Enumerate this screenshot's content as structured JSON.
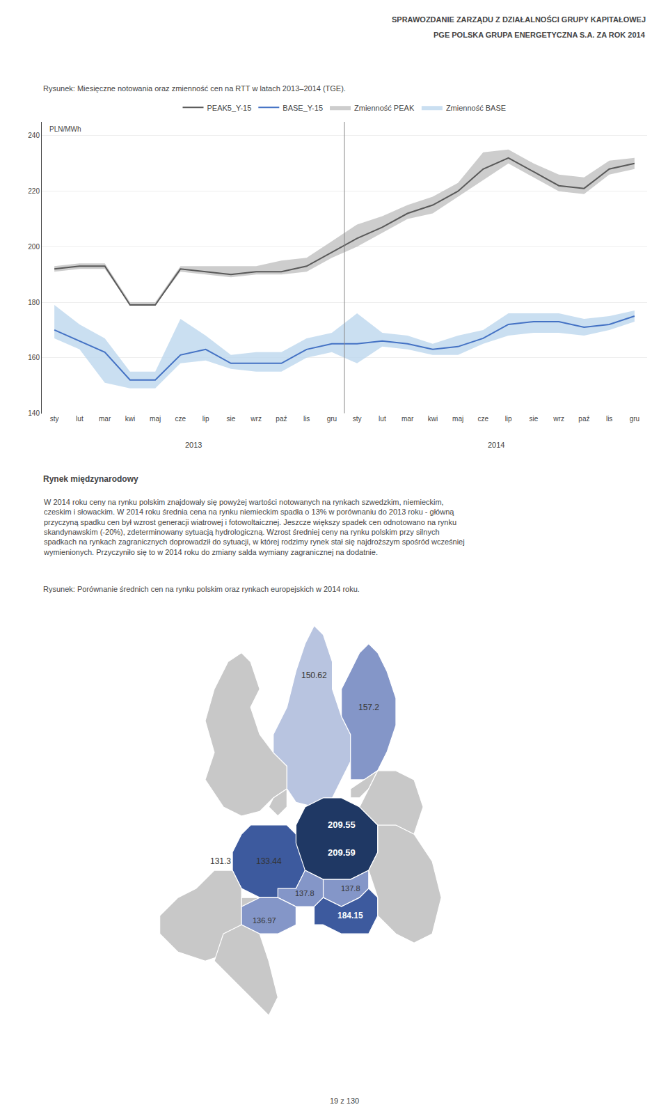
{
  "chart_data": [
    {
      "type": "line",
      "title": "Rysunek: Miesięczne notowania oraz zmienność cen na RTT w latach 2013–2014 (TGE).",
      "subtitle": "SPRAWOZDANIE ZARZĄDU Z DZIAŁALNOŚCI GRUPY KAPITAŁOWEJ\nPGE POLSKA GRUPA ENERGETYCZNA S.A. ZA ROK 2014",
      "y_label": "PLN/MWh",
      "annotations": [
        "2013",
        "2014"
      ],
      "categories": [
        "sty",
        "lut",
        "mar",
        "kwi",
        "maj",
        "cze",
        "lip",
        "sie",
        "wrz",
        "paź",
        "lis",
        "gru",
        "sty",
        "lut",
        "mar",
        "kwi",
        "maj",
        "cze",
        "lip",
        "sie",
        "wrz",
        "paź",
        "lis",
        "gru"
      ],
      "series": [
        {
          "name": "Zmienność BASE",
          "type": "band",
          "color": "#bdd7ee",
          "upper": [
            179,
            172,
            167,
            155,
            155,
            174,
            168,
            161,
            162,
            162,
            167,
            169,
            176,
            169,
            168,
            165,
            168,
            170,
            176,
            176,
            176,
            174,
            175,
            177
          ],
          "lower": [
            167,
            163,
            151,
            149,
            149,
            158,
            159,
            156,
            155,
            155,
            160,
            162,
            158,
            164,
            163,
            161,
            161,
            165,
            168,
            169,
            169,
            168,
            170,
            173
          ]
        },
        {
          "name": "Zmienność PEAK",
          "type": "band",
          "color": "#c0c0c0",
          "upper": [
            193,
            194,
            194,
            180,
            180,
            193,
            193,
            193,
            193,
            195,
            196,
            202,
            208,
            211,
            215,
            218,
            223,
            234,
            235,
            230,
            226,
            225,
            231,
            232
          ],
          "lower": [
            191,
            192,
            192,
            179,
            179,
            191,
            190,
            189,
            190,
            190,
            191,
            196,
            200,
            205,
            210,
            212,
            218,
            224,
            230,
            225,
            220,
            219,
            226,
            228
          ]
        },
        {
          "name": "BASE_Y-15",
          "type": "line",
          "color": "#4472c4",
          "values": [
            170,
            166,
            162,
            152,
            152,
            161,
            163,
            158,
            158,
            158,
            163,
            165,
            165,
            166,
            165,
            163,
            164,
            167,
            172,
            173,
            173,
            171,
            172,
            175
          ]
        },
        {
          "name": "PEAK5_Y-15",
          "type": "line",
          "color": "#595959",
          "values": [
            192,
            193,
            193,
            179,
            179,
            192,
            191,
            190,
            191,
            191,
            193,
            198,
            203,
            207,
            212,
            215,
            220,
            228,
            232,
            227,
            222,
            221,
            228,
            230
          ]
        }
      ],
      "ylim": [
        140,
        245
      ],
      "yticks": [
        140,
        160,
        180,
        200,
        220,
        240
      ],
      "grid": true,
      "legend": "top"
    },
    {
      "type": "map",
      "title": "Rysunek: Porównanie średnich cen na rynku polskim oraz rynkach europejskich w 2014 roku.",
      "annotations": [
        "Rynek międzynarodowy",
        "W 2014 roku ceny na rynku polskim znajdowały się powyżej wartości notowanych na rynkach szwedzkim, niemieckim,\nczeskim i słowackim. W 2014 roku średnia cena na rynku niemieckim spadła o 13% w porównaniu do 2013 roku - główną\nprzyczyną spadku cen był wzrost generacji wiatrowej i fotowoltaicznej. Jeszcze większy spadek cen odnotowano na rynku\nskandynawskim (-20%), zdeterminowany sytuacją hydrologiczną. Wzrost średniej ceny na rynku polskim przy silnych\nspadkach na rynkach zagranicznych doprowadził do sytuacji, w której rodzimy rynek stał się najdroższym spośród wcześniej\nwymienionych. Przyczyniło się to w 2014 roku do zmiany salda wymiany zagranicznej na dodatnie.",
        "19 z 130"
      ],
      "values": [
        150.62,
        157.2,
        133.44,
        131.3,
        137.8,
        136.97,
        209.55,
        209.59,
        137.8,
        184.15
      ],
      "colors": [
        "#b8c4e0",
        "#8496c8",
        "#3d5a9e",
        "#3d5a9e",
        "#8496c8",
        "#8496c8",
        "#1f3864",
        "#1f3864",
        "#8496c8",
        "#3d5a9e"
      ],
      "data_labels": true
    }
  ]
}
